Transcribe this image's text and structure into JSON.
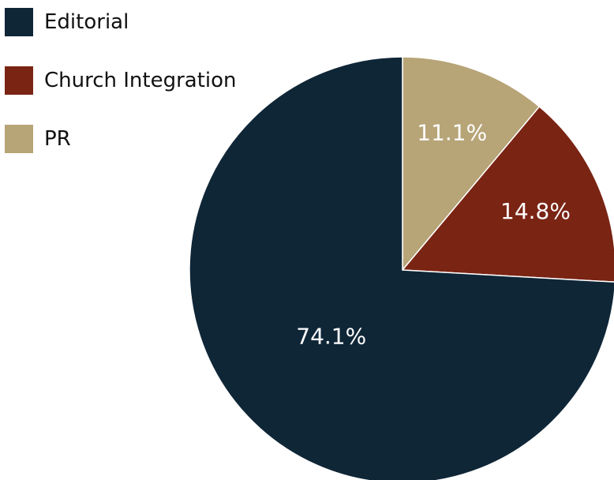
{
  "chart_data": {
    "type": "pie",
    "categories": [
      "Editorial",
      "Church Integration",
      "PR"
    ],
    "values": [
      74.1,
      14.8,
      11.1
    ],
    "value_labels": [
      "74.1%",
      "14.8%",
      "11.1%"
    ],
    "colors": [
      "#0f2637",
      "#7a2414",
      "#b7a477"
    ],
    "title": "",
    "legend_position": "top-left",
    "start": "12 o'clock, clockwise, PR first"
  },
  "legend": {
    "items": [
      {
        "label": "Editorial",
        "color": "#0f2637"
      },
      {
        "label": "Church Integration",
        "color": "#7a2414"
      },
      {
        "label": "PR",
        "color": "#b7a477"
      }
    ]
  }
}
